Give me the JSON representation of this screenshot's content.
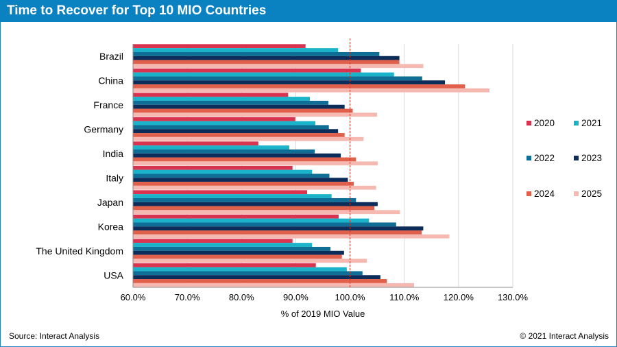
{
  "header": {
    "title": "Time to Recover for Top 10 MIO Countries"
  },
  "footer": {
    "source": "Source: Interact Analysis",
    "copyright": "© 2021 Interact Analysis"
  },
  "chart_data": {
    "type": "bar",
    "orientation": "horizontal",
    "title": "Time to Recover for Top 10 MIO Countries",
    "xlabel": "% of 2019 MIO Value",
    "ylabel": "",
    "xlim": [
      0.6,
      1.3
    ],
    "xticks": [
      "60.0%",
      "70.0%",
      "80.0%",
      "90.0%",
      "100.0%",
      "110.0%",
      "120.0%",
      "130.0%"
    ],
    "reference_line": {
      "x": 1.0,
      "style": "dashed",
      "color": "#c0392b"
    },
    "grid": true,
    "legend_position": "right",
    "categories": [
      "Brazil",
      "China",
      "France",
      "Germany",
      "India",
      "Italy",
      "Japan",
      "Korea",
      "The United Kingdom",
      "USA"
    ],
    "series": [
      {
        "name": "2020",
        "color": "#d9344f",
        "values": [
          0.918,
          1.02,
          0.886,
          0.899,
          0.831,
          0.894,
          0.921,
          0.979,
          0.894,
          0.937
        ]
      },
      {
        "name": "2021",
        "color": "#1ab3c9",
        "values": [
          0.978,
          1.081,
          0.926,
          0.936,
          0.888,
          0.93,
          0.966,
          1.035,
          0.93,
          0.994
        ]
      },
      {
        "name": "2022",
        "color": "#0e6e96",
        "values": [
          1.054,
          1.133,
          0.96,
          0.961,
          0.935,
          0.962,
          1.011,
          1.085,
          0.964,
          1.023
        ]
      },
      {
        "name": "2023",
        "color": "#0c2c5a",
        "values": [
          1.091,
          1.175,
          0.99,
          0.978,
          0.983,
          0.996,
          1.051,
          1.135,
          0.989,
          1.056
        ]
      },
      {
        "name": "2024",
        "color": "#e0604c",
        "values": [
          1.091,
          1.212,
          1.005,
          0.99,
          1.011,
          1.007,
          1.045,
          1.132,
          0.985,
          1.068
        ]
      },
      {
        "name": "2025",
        "color": "#f5b9b2",
        "values": [
          1.135,
          1.257,
          1.05,
          1.025,
          1.051,
          1.048,
          1.092,
          1.183,
          1.031,
          1.118
        ]
      }
    ]
  }
}
